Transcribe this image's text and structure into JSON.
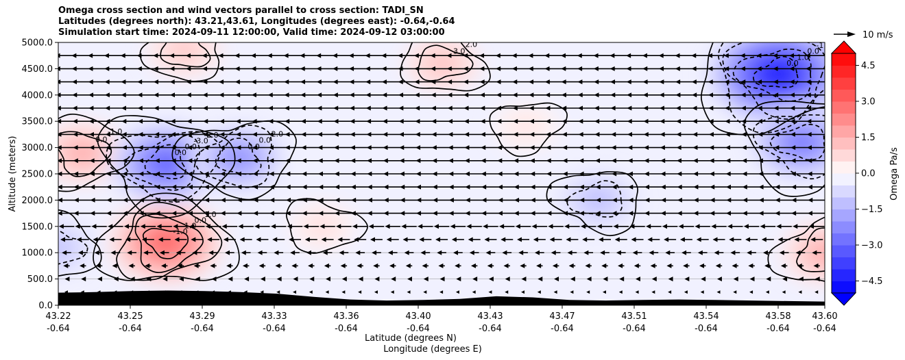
{
  "chart_data": {
    "type": "heatmap",
    "title_lines": [
      "Omega cross section and wind vectors parallel to cross section: TADI_SN",
      "Latitudes (degrees north): 43.21,43.61, Longitudes (degrees east): -0.64,-0.64",
      "Simulation start time: 2024-09-11 12:00:00, Valid time: 2024-09-12 03:00:00"
    ],
    "ylabel": "Altitude (meters)",
    "xlabel_lines": [
      "Latitude (degrees N)",
      "Longitude (degrees E)"
    ],
    "ylim": [
      0,
      5000
    ],
    "y_ticks": [
      "0.0",
      "500.0",
      "1000.0",
      "1500.0",
      "2000.0",
      "2500.0",
      "3000.0",
      "3500.0",
      "4000.0",
      "4500.0",
      "5000.0"
    ],
    "x_ticks": [
      {
        "lat": "43.22",
        "lon": "-0.64"
      },
      {
        "lat": "43.25",
        "lon": "-0.64"
      },
      {
        "lat": "43.29",
        "lon": "-0.64"
      },
      {
        "lat": "43.33",
        "lon": "-0.64"
      },
      {
        "lat": "43.36",
        "lon": "-0.64"
      },
      {
        "lat": "43.40",
        "lon": "-0.64"
      },
      {
        "lat": "43.43",
        "lon": "-0.64"
      },
      {
        "lat": "43.47",
        "lon": "-0.64"
      },
      {
        "lat": "43.51",
        "lon": "-0.64"
      },
      {
        "lat": "43.54",
        "lon": "-0.64"
      },
      {
        "lat": "43.58",
        "lon": "-0.64"
      },
      {
        "lat": "43.60",
        "lon": "-0.64"
      }
    ],
    "colorbar": {
      "label": "Omega Pa/s",
      "range": [
        -5,
        5
      ],
      "ticks": [
        "-4.5",
        "-3.0",
        "-1.5",
        "0.0",
        "1.5",
        "3.0",
        "4.5"
      ],
      "colormap": "bwr"
    },
    "quiver_key": {
      "label": "10 m/s"
    },
    "omega_cells": [
      {
        "lat": "43.27",
        "alt": 1200,
        "omega": 3.2
      },
      {
        "lat": "43.23",
        "alt": 2900,
        "omega": 1.6
      },
      {
        "lat": "43.27",
        "alt": 2700,
        "omega": -3.3
      },
      {
        "lat": "43.31",
        "alt": 2800,
        "omega": -2.3
      },
      {
        "lat": "43.28",
        "alt": 4850,
        "omega": 1.0
      },
      {
        "lat": "43.41",
        "alt": 4600,
        "omega": 1.1
      },
      {
        "lat": "43.58",
        "alt": 4400,
        "omega": -4.8
      },
      {
        "lat": "43.59",
        "alt": 3100,
        "omega": -2.8
      },
      {
        "lat": "43.49",
        "alt": 2000,
        "omega": -1.2
      },
      {
        "lat": "43.60",
        "alt": 1000,
        "omega": 1.6
      },
      {
        "lat": "43.22",
        "alt": 1100,
        "omega": -1.1
      },
      {
        "lat": "43.35",
        "alt": 1500,
        "omega": 0.6
      },
      {
        "lat": "43.45",
        "alt": 3400,
        "omega": 0.5
      }
    ],
    "contour_labels": [
      "1.0",
      "0.0",
      "1.0",
      "-1.0",
      "-1.0",
      "0.0",
      "-2.0",
      "-3.0",
      "0.0",
      "0.0",
      "-2.0",
      "0.0",
      "0.0",
      "0.0",
      "-1.0",
      "2.0",
      "3.0",
      "0.0",
      "-1.0",
      "0.0",
      "1.0",
      "0.0",
      "-1.0",
      "0.0"
    ]
  },
  "colors": {
    "terrain": "#000000",
    "contour": "#000000",
    "grid": "#b0b0b0"
  }
}
